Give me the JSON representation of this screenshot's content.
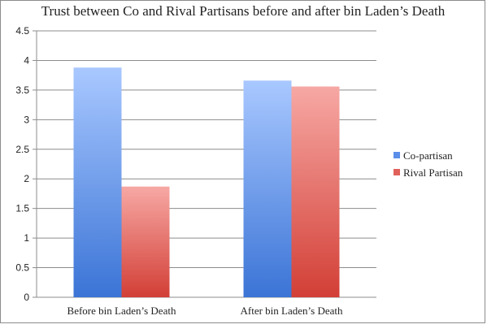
{
  "chart_data": {
    "type": "bar",
    "title": "Trust between Co and Rival Partisans before and after bin Laden’s Death",
    "categories": [
      "Before bin Laden’s Death",
      "After bin Laden’s Death"
    ],
    "series": [
      {
        "name": "Co-partisan",
        "values": [
          3.88,
          3.66
        ],
        "color": "#5b8ee8"
      },
      {
        "name": "Rival Partisan",
        "values": [
          1.87,
          3.56
        ],
        "color": "#e0605a"
      }
    ],
    "ylim": [
      0,
      4.5
    ],
    "yticks": [
      "0",
      "0.5",
      "1",
      "1.5",
      "2",
      "2.5",
      "3",
      "3.5",
      "4",
      "4.5"
    ],
    "grid": true,
    "legend_position": "right"
  }
}
